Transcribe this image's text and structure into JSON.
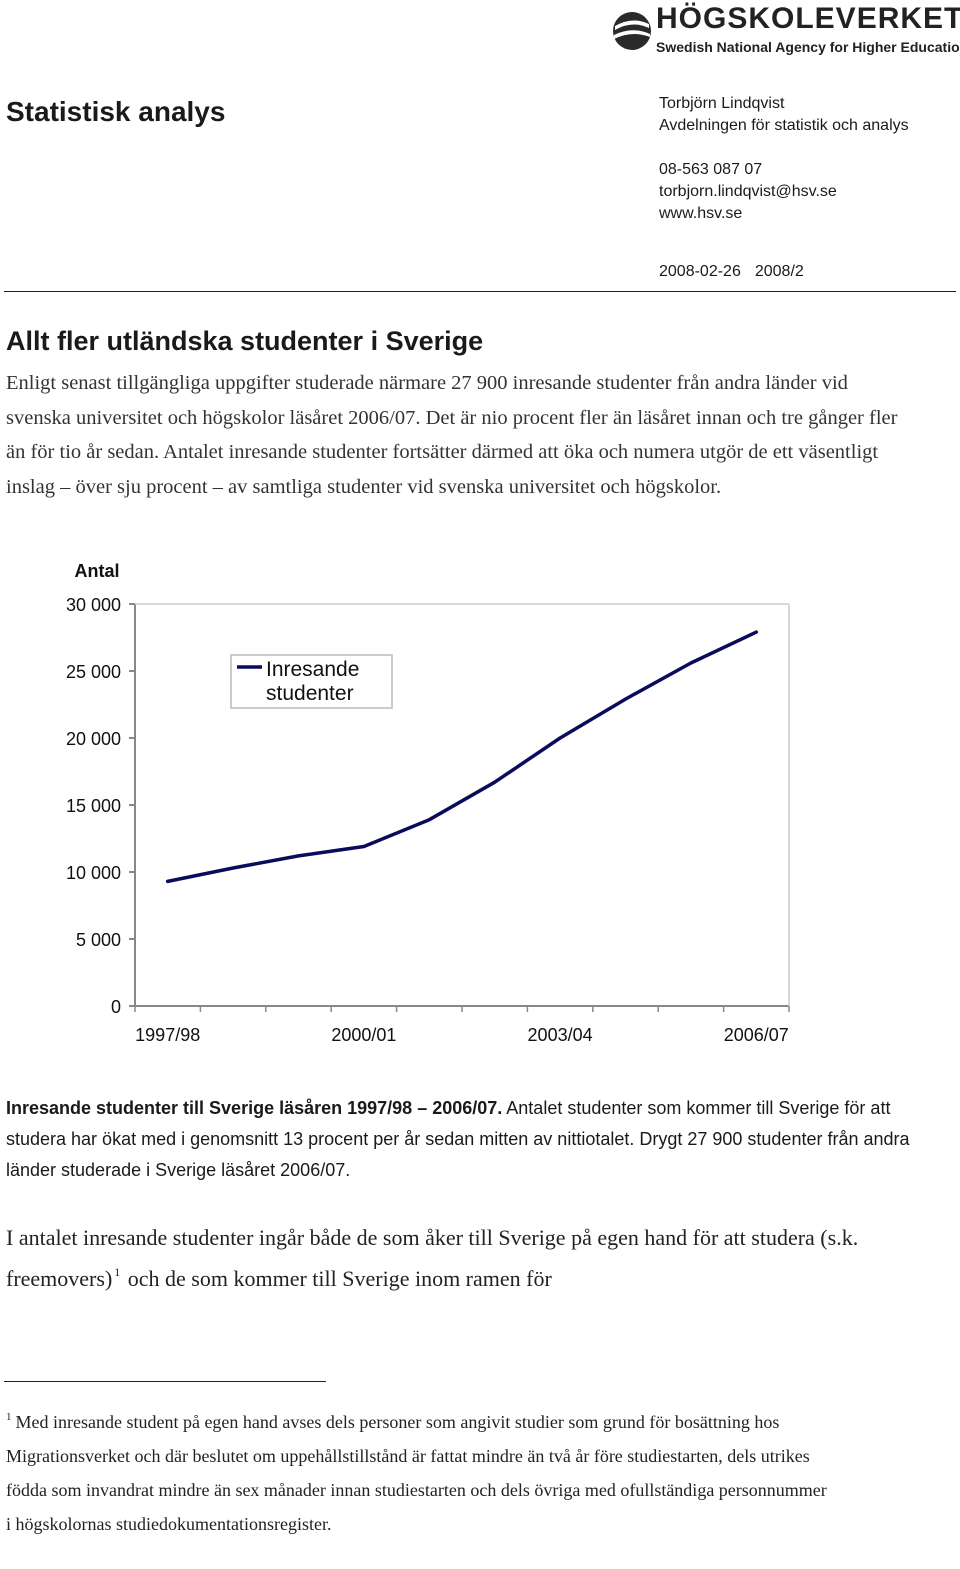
{
  "logo": {
    "name": "HÖGSKOLEVERKET",
    "tagline": "Swedish National Agency for Higher Education"
  },
  "header": {
    "doc_title": "Statistisk analys",
    "author": "Torbjörn Lindqvist",
    "department": "Avdelningen för statistik och analys",
    "phone": "08-563 087 07",
    "email": "torbjorn.lindqvist@hsv.se",
    "website": "www.hsv.se",
    "date": "2008-02-26",
    "issue": "2008/2"
  },
  "article": {
    "headline": "Allt fler utländska studenter i Sverige",
    "intro": "Enligt senast tillgängliga uppgifter studerade närmare 27 900 inresande studenter från andra länder vid svenska universitet och högskolor läsåret 2006/07. Det är nio procent fler än läsåret innan och tre gånger fler än för tio år sedan. Antalet inresande studenter fortsätter därmed att öka och numera utgör de ett väsentligt inslag – över sju procent – av samtliga studenter vid svenska universitet och högskolor.",
    "caption_bold": "Inresande studenter till Sverige läsåren 1997/98 – 2006/07.",
    "caption_text": " Antalet studenter som kommer till Sverige för att studera har ökat med i genomsnitt 13 procent per år sedan mitten av nittiotalet. Drygt 27 900 studenter från andra länder studerade i Sverige läsåret 2006/07.",
    "body_part1": "I antalet inresande studenter ingår både de som åker till Sverige på egen hand för att studera (s.k. freemovers)",
    "footnote_ref": "1",
    "body_part2": " och de som kommer till Sverige inom ramen för"
  },
  "footnote": {
    "marker": "1",
    "text": "Med inresande student på egen hand avses dels personer som angivit studier som grund för bosättning hos Migrationsverket och där beslutet om uppehållstillstånd är fattat mindre än två år före studiestarten, dels utrikes födda som invandrat mindre än sex månader innan studiestarten och dels övriga med ofullständiga personnummer i högskolornas studiedokumentationsregister."
  },
  "chart_data": {
    "type": "line",
    "ylabel": "Antal",
    "xlabel": "",
    "title": "",
    "ylim": [
      0,
      30000
    ],
    "yticks": [
      0,
      5000,
      10000,
      15000,
      20000,
      25000,
      30000
    ],
    "ytick_labels": [
      "0",
      "5 000",
      "10 000",
      "15 000",
      "20 000",
      "25 000",
      "30 000"
    ],
    "x": [
      "1997/98",
      "1998/99",
      "1999/00",
      "2000/01",
      "2001/02",
      "2002/03",
      "2003/04",
      "2004/05",
      "2005/06",
      "2006/07"
    ],
    "xtick_labels": [
      "1997/98",
      "2000/01",
      "2003/04",
      "2006/07"
    ],
    "series": [
      {
        "name": "Inresande studenter",
        "values": [
          9300,
          10300,
          11200,
          11900,
          13900,
          16700,
          20000,
          22900,
          25600,
          27900
        ]
      }
    ],
    "legend_position": "top-left",
    "grid": false,
    "colors": {
      "line": "#0b0b5c",
      "axis": "#888888"
    }
  }
}
